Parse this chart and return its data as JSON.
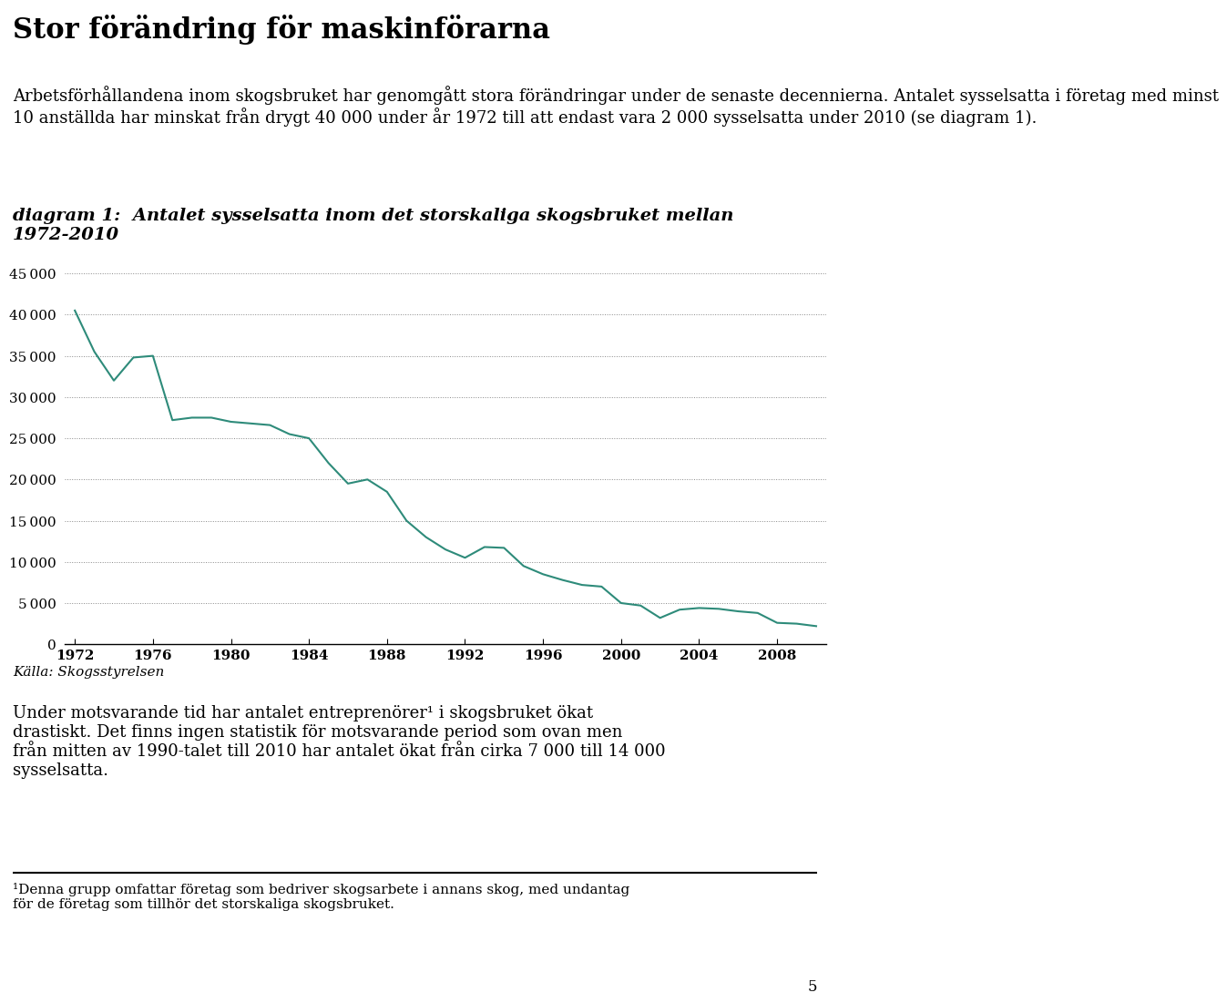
{
  "title_main": "Stor förändring för maskinförarna",
  "body_text1_line1": "Arbetsförhållandena inom skogsbruket har genomgått stora förändringar under de senaste decennierna. Antalet sysselsatta i företag med minst",
  "body_text1_line2": "10 anställda har minskat från drygt 40 000 under år 1972 till att endast vara 2 000 sysselsatta under 2010 (se diagram 1).",
  "diagram_label": "diagram 1:  Antalet sysselsatta inom det storskaliga skogsbruket mellan\n1972-2010",
  "source_label": "Källa: Skogsstyrelsen",
  "body_text2": "Under motsvarande tid har antalet entreprenörer¹ i skogsbruket ökat drastiskt. Det finns ingen statistik för motsvarande period som ovan men från mitten av 1990-talet till 2010 har antalet ökat från cirka 7 000 till 14 000 sysselsatta.",
  "footnote": "¹Denna grupp omfattar företag som bedriver skogsarbete i annans skog, med undantag för de företag som tillhör det storskaliga skogsbruket.",
  "page_number": "5",
  "years": [
    1972,
    1973,
    1974,
    1975,
    1976,
    1977,
    1978,
    1979,
    1980,
    1981,
    1982,
    1983,
    1984,
    1985,
    1986,
    1987,
    1988,
    1989,
    1990,
    1991,
    1992,
    1993,
    1994,
    1995,
    1996,
    1997,
    1998,
    1999,
    2000,
    2001,
    2002,
    2003,
    2004,
    2005,
    2006,
    2007,
    2008,
    2009,
    2010
  ],
  "values": [
    40500,
    35500,
    32000,
    34800,
    35000,
    27200,
    27500,
    27500,
    27000,
    26800,
    26600,
    25500,
    25000,
    22000,
    19500,
    20000,
    18500,
    15000,
    13000,
    11500,
    10500,
    11800,
    11700,
    9500,
    8500,
    7800,
    7200,
    7000,
    5000,
    4700,
    3200,
    4200,
    4400,
    4300,
    4000,
    3800,
    2600,
    2500,
    2200
  ],
  "line_color": "#2e8b7a",
  "background_color": "#ffffff",
  "ylim": [
    0,
    45000
  ],
  "yticks": [
    0,
    5000,
    10000,
    15000,
    20000,
    25000,
    30000,
    35000,
    40000,
    45000
  ],
  "xticks": [
    1972,
    1976,
    1980,
    1984,
    1988,
    1992,
    1996,
    2000,
    2004,
    2008
  ],
  "grid_color": "#888888",
  "text_color": "#000000",
  "title_fontsize": 22,
  "body_fontsize": 13,
  "diagram_label_fontsize": 14,
  "axis_tick_fontsize": 11
}
